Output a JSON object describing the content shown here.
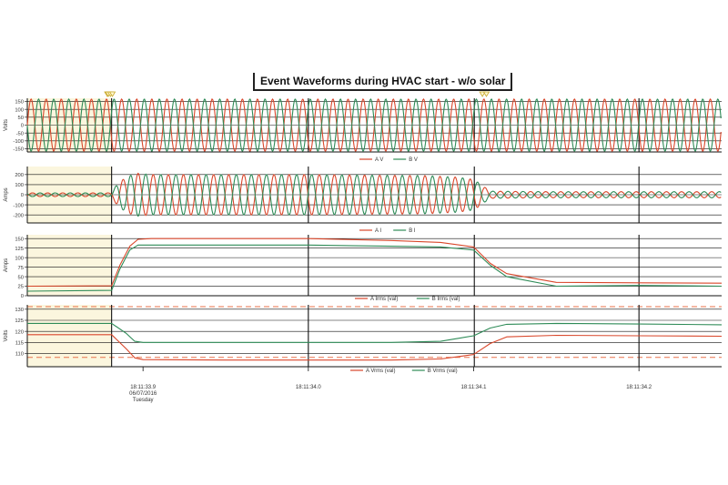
{
  "title": "Event Waveforms during HVAC start - w/o solar",
  "colors": {
    "phase_a": "#d9472b",
    "phase_b": "#2e8b57",
    "pre_event_shade": "#fbf6de",
    "limit_line": "#e8704a",
    "marker": "#c8a82a"
  },
  "chart_data": [
    {
      "type": "line",
      "panel": "voltage-waveforms",
      "ylabel": "Volts",
      "ylim": [
        -170,
        170
      ],
      "yticks": [
        150,
        100,
        50,
        0,
        -50,
        -100,
        -150
      ],
      "cycles_shown": 46,
      "series": [
        {
          "name": "A V",
          "color": "#d9472b",
          "amplitude": 165,
          "phase_deg": 0
        },
        {
          "name": "B V",
          "color": "#2e8b57",
          "amplitude": 165,
          "phase_deg": 180
        }
      ],
      "event_markers_time_s": [
        18.8784,
        18.879,
        18.8803,
        18.8815,
        19.1053,
        19.1077
      ]
    },
    {
      "type": "line",
      "panel": "current-waveforms",
      "ylabel": "Amps",
      "ylim": [
        -280,
        280
      ],
      "yticks": [
        200,
        100,
        0,
        -100,
        -200
      ],
      "series": [
        {
          "name": "A I",
          "color": "#d9472b",
          "phase_deg": 0
        },
        {
          "name": "B I",
          "color": "#2e8b57",
          "phase_deg": 180
        }
      ],
      "peak_envelope": {
        "t": [
          18.83,
          18.881,
          18.885,
          18.895,
          18.905,
          19.0,
          19.07,
          19.09,
          19.1004,
          19.11,
          19.15,
          19.2,
          19.25
        ],
        "v": [
          18,
          18,
          125,
          215,
          200,
          200,
          190,
          175,
          150,
          35,
          30,
          30,
          30
        ]
      }
    },
    {
      "type": "line",
      "panel": "rms-currents",
      "ylabel": "Amps",
      "ylim": [
        0,
        160
      ],
      "yticks": [
        150,
        125,
        100,
        75,
        50,
        25,
        0
      ],
      "series": [
        {
          "name": "A Irms (val)",
          "color": "#d9472b",
          "x": [
            18.83,
            18.881,
            18.886,
            18.892,
            18.897,
            18.905,
            18.95,
            19.0,
            19.05,
            19.08,
            19.1,
            19.11,
            19.12,
            19.15,
            19.2,
            19.25
          ],
          "y": [
            25,
            26,
            80,
            130,
            148,
            150,
            150,
            150,
            145,
            140,
            128,
            85,
            58,
            35,
            34,
            33
          ]
        },
        {
          "name": "B Irms (val)",
          "color": "#2e8b57",
          "x": [
            18.83,
            18.881,
            18.886,
            18.892,
            18.897,
            18.905,
            18.95,
            19.0,
            19.05,
            19.08,
            19.1,
            19.11,
            19.12,
            19.15,
            19.2,
            19.25
          ],
          "y": [
            12,
            14,
            70,
            120,
            133,
            133,
            133,
            133,
            130,
            128,
            120,
            80,
            50,
            25,
            27,
            25
          ]
        }
      ]
    },
    {
      "type": "line",
      "panel": "rms-voltages",
      "ylabel": "Volts",
      "ylim": [
        104,
        132
      ],
      "yticks": [
        130,
        125,
        120,
        115,
        110
      ],
      "limit_lines": [
        131.2,
        108.2
      ],
      "series": [
        {
          "name": "A Vrms (val)",
          "color": "#d9472b",
          "x": [
            18.83,
            18.881,
            18.89,
            18.895,
            18.9,
            18.95,
            19.0,
            19.05,
            19.08,
            19.1,
            19.11,
            19.12,
            19.15,
            19.2,
            19.25
          ],
          "y": [
            118.5,
            118.5,
            112,
            108,
            107.2,
            107.0,
            107.0,
            107.0,
            107.5,
            109.5,
            114.5,
            117.5,
            118.2,
            118.0,
            117.8
          ]
        },
        {
          "name": "B Vrms (val)",
          "color": "#2e8b57",
          "x": [
            18.83,
            18.881,
            18.89,
            18.895,
            18.9,
            18.95,
            19.0,
            19.05,
            19.08,
            19.1,
            19.11,
            19.12,
            19.15,
            19.2,
            19.25
          ],
          "y": [
            123.6,
            123.6,
            119,
            115.5,
            115.0,
            115.0,
            115.0,
            115.0,
            115.5,
            118,
            121.5,
            123.2,
            123.6,
            123.3,
            123.0
          ]
        }
      ]
    }
  ],
  "x_axis": {
    "range_s": [
      18.83,
      19.25
    ],
    "pre_event_end_s": 18.881,
    "gridlines_s": [
      18.881,
      19.0,
      19.1004,
      19.2
    ],
    "ticks": [
      {
        "t": 18.9,
        "label": "18:11:33.9"
      },
      {
        "t": 19.0,
        "label": "18:11:34.0"
      },
      {
        "t": 19.1,
        "label": "18:11:34.1"
      },
      {
        "t": 19.2,
        "label": "18:11:34.2"
      }
    ],
    "date_label": "06/07/2016",
    "day_label": "Tuesday"
  }
}
